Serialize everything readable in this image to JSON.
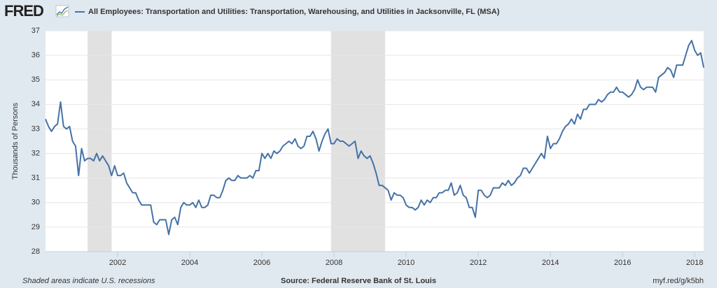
{
  "logo": "FRED",
  "chart_data": {
    "type": "line",
    "series": [
      {
        "name": "All Employees: Transportation and Utilities: Transportation, Warehousing, and Utilities in Jacksonville, FL (MSA)",
        "color": "#4572a7",
        "values": [
          33.4,
          33.1,
          32.9,
          33.1,
          33.2,
          34.1,
          33.1,
          33.0,
          33.1,
          32.5,
          32.3,
          31.1,
          32.2,
          31.7,
          31.8,
          31.8,
          31.7,
          32.0,
          31.7,
          31.9,
          31.7,
          31.5,
          31.1,
          31.5,
          31.1,
          31.1,
          31.2,
          30.8,
          30.6,
          30.4,
          30.4,
          30.1,
          29.9,
          29.9,
          29.9,
          29.9,
          29.2,
          29.1,
          29.3,
          29.3,
          29.3,
          28.7,
          29.3,
          29.4,
          29.1,
          29.8,
          30.0,
          29.9,
          29.9,
          30.0,
          29.8,
          30.1,
          29.8,
          29.8,
          29.9,
          30.3,
          30.3,
          30.2,
          30.2,
          30.5,
          30.9,
          31.0,
          30.9,
          30.9,
          31.1,
          31.0,
          31.0,
          31.0,
          31.1,
          31.0,
          31.3,
          31.3,
          32.0,
          31.8,
          32.0,
          31.8,
          32.1,
          32.0,
          32.1,
          32.3,
          32.4,
          32.5,
          32.4,
          32.6,
          32.3,
          32.2,
          32.3,
          32.7,
          32.7,
          32.9,
          32.6,
          32.1,
          32.5,
          32.8,
          33.0,
          32.4,
          32.4,
          32.6,
          32.5,
          32.5,
          32.4,
          32.3,
          32.4,
          32.5,
          31.8,
          32.1,
          31.9,
          31.8,
          31.9,
          31.6,
          31.2,
          30.7,
          30.7,
          30.6,
          30.5,
          30.1,
          30.4,
          30.3,
          30.3,
          30.2,
          29.9,
          29.8,
          29.8,
          29.7,
          29.8,
          30.1,
          29.9,
          30.1,
          30.0,
          30.2,
          30.2,
          30.4,
          30.4,
          30.5,
          30.5,
          30.8,
          30.3,
          30.4,
          30.7,
          30.3,
          30.2,
          29.8,
          29.8,
          29.4,
          30.5,
          30.5,
          30.3,
          30.2,
          30.3,
          30.6,
          30.6,
          30.6,
          30.8,
          30.7,
          30.9,
          30.7,
          30.8,
          31.0,
          31.1,
          31.4,
          31.4,
          31.2,
          31.4,
          31.6,
          31.8,
          32.0,
          31.8,
          32.7,
          32.2,
          32.4,
          32.4,
          32.6,
          32.9,
          33.1,
          33.2,
          33.4,
          33.2,
          33.6,
          33.4,
          33.8,
          33.8,
          34.0,
          34.0,
          34.0,
          34.2,
          34.1,
          34.2,
          34.4,
          34.5,
          34.5,
          34.7,
          34.5,
          34.5,
          34.4,
          34.3,
          34.4,
          34.6,
          35.0,
          34.7,
          34.6,
          34.7,
          34.7,
          34.7,
          34.5,
          35.1,
          35.2,
          35.3,
          35.5,
          35.4,
          35.1,
          35.6,
          35.6,
          35.6,
          36.0,
          36.4,
          36.6,
          36.2,
          36.0,
          36.1,
          35.5
        ]
      }
    ],
    "x": [
      2000,
      2000.083,
      2000.167,
      2000.25,
      2000.333,
      2000.417,
      2000.5,
      2000.583,
      2000.667,
      2000.75,
      2000.833,
      2000.917,
      2001,
      2001.083,
      2001.167,
      2001.25,
      2001.333,
      2001.417,
      2001.5,
      2001.583,
      2001.667,
      2001.75,
      2001.833,
      2001.917,
      2002,
      2002.083,
      2002.167,
      2002.25,
      2002.333,
      2002.417,
      2002.5,
      2002.583,
      2002.667,
      2002.75,
      2002.833,
      2002.917,
      2003,
      2003.083,
      2003.167,
      2003.25,
      2003.333,
      2003.417,
      2003.5,
      2003.583,
      2003.667,
      2003.75,
      2003.833,
      2003.917,
      2004,
      2004.083,
      2004.167,
      2004.25,
      2004.333,
      2004.417,
      2004.5,
      2004.583,
      2004.667,
      2004.75,
      2004.833,
      2004.917,
      2005,
      2005.083,
      2005.167,
      2005.25,
      2005.333,
      2005.417,
      2005.5,
      2005.583,
      2005.667,
      2005.75,
      2005.833,
      2005.917,
      2006,
      2006.083,
      2006.167,
      2006.25,
      2006.333,
      2006.417,
      2006.5,
      2006.583,
      2006.667,
      2006.75,
      2006.833,
      2006.917,
      2007,
      2007.083,
      2007.167,
      2007.25,
      2007.333,
      2007.417,
      2007.5,
      2007.583,
      2007.667,
      2007.75,
      2007.833,
      2007.917,
      2008,
      2008.083,
      2008.167,
      2008.25,
      2008.333,
      2008.417,
      2008.5,
      2008.583,
      2008.667,
      2008.75,
      2008.833,
      2008.917,
      2009,
      2009.083,
      2009.167,
      2009.25,
      2009.333,
      2009.417,
      2009.5,
      2009.583,
      2009.667,
      2009.75,
      2009.833,
      2009.917,
      2010,
      2010.083,
      2010.167,
      2010.25,
      2010.333,
      2010.417,
      2010.5,
      2010.583,
      2010.667,
      2010.75,
      2010.833,
      2010.917,
      2011,
      2011.083,
      2011.167,
      2011.25,
      2011.333,
      2011.417,
      2011.5,
      2011.583,
      2011.667,
      2011.75,
      2011.833,
      2011.917,
      2012,
      2012.083,
      2012.167,
      2012.25,
      2012.333,
      2012.417,
      2012.5,
      2012.583,
      2012.667,
      2012.75,
      2012.833,
      2012.917,
      2013,
      2013.083,
      2013.167,
      2013.25,
      2013.333,
      2013.417,
      2013.5,
      2013.583,
      2013.667,
      2013.75,
      2013.833,
      2013.917,
      2014,
      2014.083,
      2014.167,
      2014.25,
      2014.333,
      2014.417,
      2014.5,
      2014.583,
      2014.667,
      2014.75,
      2014.833,
      2014.917,
      2015,
      2015.083,
      2015.167,
      2015.25,
      2015.333,
      2015.417,
      2015.5,
      2015.583,
      2015.667,
      2015.75,
      2015.833,
      2015.917,
      2016,
      2016.083,
      2016.167,
      2016.25,
      2016.333,
      2016.417,
      2016.5,
      2016.583,
      2016.667,
      2016.75,
      2016.833,
      2016.917,
      2017,
      2017.083,
      2017.167,
      2017.25,
      2017.333,
      2017.417,
      2017.5,
      2017.583,
      2017.667,
      2017.75,
      2017.833,
      2017.917,
      2018,
      2018.083,
      2018.167,
      2018.25
    ],
    "recessions": [
      [
        2001.167,
        2001.833
      ],
      [
        2007.917,
        2009.417
      ]
    ],
    "recession_color": "#e1e1e1",
    "xlim": [
      2000,
      2018.25
    ],
    "xticks": [
      2002,
      2004,
      2006,
      2008,
      2010,
      2012,
      2014,
      2016,
      2018
    ],
    "ylim": [
      28,
      37
    ],
    "yticks": [
      28,
      29,
      30,
      31,
      32,
      33,
      34,
      35,
      36,
      37
    ],
    "ylabel": "Thousands of Persons",
    "grid": true,
    "notes": [
      "Shaded areas indicate U.S. recessions",
      "Source: Federal Reserve Bank of St. Louis",
      "myf.red/g/k5bh"
    ]
  }
}
